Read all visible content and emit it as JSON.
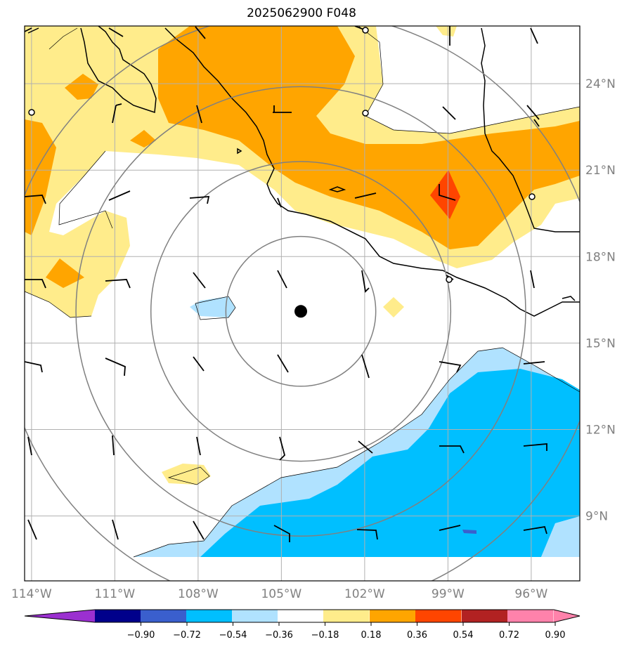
{
  "title": "2025062900 F048",
  "map": {
    "lon_range": [
      -114.25,
      -94.25
    ],
    "lat_range": [
      6.75,
      26.0
    ],
    "lon_ticks": [
      {
        "value": -114,
        "label": "114°W"
      },
      {
        "value": -111,
        "label": "111°W"
      },
      {
        "value": -108,
        "label": "108°W"
      },
      {
        "value": -105,
        "label": "105°W"
      },
      {
        "value": -102,
        "label": "102°W"
      },
      {
        "value": -99,
        "label": "99°W"
      },
      {
        "value": -96,
        "label": "96°W"
      }
    ],
    "lat_ticks": [
      {
        "value": 24,
        "label": "24°N"
      },
      {
        "value": 21,
        "label": "21°N"
      },
      {
        "value": 18,
        "label": "18°N"
      },
      {
        "value": 15,
        "label": "15°N"
      },
      {
        "value": 12,
        "label": "12°N"
      },
      {
        "value": 9,
        "label": "9°N"
      }
    ],
    "center": {
      "lon": -104.3,
      "lat": 16.1
    },
    "range_rings_deg": [
      2.7,
      5.4,
      8.1,
      10.8
    ],
    "colors": {
      "neg_extend": "#9b30d0",
      "neg90": "#00008b",
      "neg72": "#3a5fcd",
      "neg54": "#00bfff",
      "neg36": "#b0e2ff",
      "neutral": "#ffffff",
      "pos18": "#ffec8b",
      "pos36": "#ffa500",
      "pos54": "#ff4500",
      "pos72": "#b22222",
      "pos90": "#ff82ab",
      "coast": "#000000",
      "grid": "#b0b0b0",
      "ring": "#808080"
    },
    "colorbar_ticks": [
      "−0.90",
      "−0.72",
      "−0.54",
      "−0.36",
      "−0.18",
      "0.18",
      "0.36",
      "0.54",
      "0.72",
      "0.90"
    ]
  }
}
